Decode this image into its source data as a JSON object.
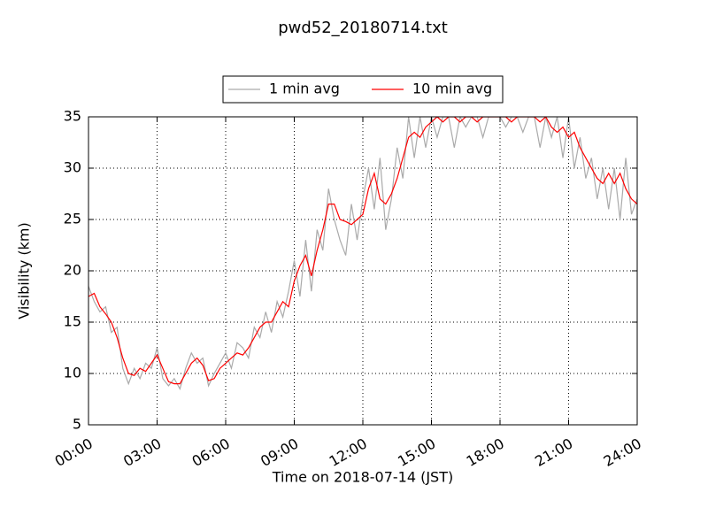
{
  "chart_data": {
    "type": "line",
    "title": "pwd52_20180714.txt",
    "x_label": "Time on 2018-07-14 (JST)",
    "y_label": "Visibility (km)",
    "x": [
      0,
      0.25,
      0.5,
      0.75,
      1,
      1.25,
      1.5,
      1.75,
      2,
      2.25,
      2.5,
      2.75,
      3,
      3.25,
      3.5,
      3.75,
      4,
      4.25,
      4.5,
      4.75,
      5,
      5.25,
      5.5,
      5.75,
      6,
      6.25,
      6.5,
      6.75,
      7,
      7.25,
      7.5,
      7.75,
      8,
      8.25,
      8.5,
      8.75,
      9,
      9.25,
      9.5,
      9.75,
      10,
      10.25,
      10.5,
      10.75,
      11,
      11.25,
      11.5,
      11.75,
      12,
      12.25,
      12.5,
      12.75,
      13,
      13.25,
      13.5,
      13.75,
      14,
      14.25,
      14.5,
      14.75,
      15,
      15.25,
      15.5,
      15.75,
      16,
      16.25,
      16.5,
      16.75,
      17,
      17.25,
      17.5,
      17.75,
      18,
      18.25,
      18.5,
      18.75,
      19,
      19.25,
      19.5,
      19.75,
      20,
      20.25,
      20.5,
      20.75,
      21,
      21.25,
      21.5,
      21.75,
      22,
      22.25,
      22.5,
      22.75,
      23,
      23.25,
      23.5,
      23.75,
      24
    ],
    "series": [
      {
        "name": "1 min avg",
        "color": "#aaaaaa",
        "values": [
          18.5,
          17,
          16,
          16.5,
          14,
          14.5,
          10.5,
          9,
          10.5,
          9.5,
          11,
          10.5,
          12.5,
          9.5,
          8.8,
          9.5,
          8.5,
          10.5,
          12,
          11,
          11.5,
          8.8,
          10,
          11,
          12,
          10.5,
          13,
          12.5,
          11.5,
          14.5,
          13.5,
          16,
          14,
          17,
          15.5,
          18,
          21,
          17.5,
          23,
          18,
          24,
          22,
          28,
          25,
          23,
          21.5,
          26.5,
          23,
          27,
          30,
          26,
          31,
          24,
          27,
          32,
          29,
          35,
          31,
          35,
          32,
          35,
          33,
          35,
          35,
          32,
          35,
          34,
          35,
          35,
          33,
          35,
          35,
          35,
          34,
          35,
          35,
          33.5,
          35,
          35,
          32,
          35,
          33,
          35,
          31,
          35,
          30,
          33,
          29,
          31,
          27,
          30,
          26,
          30,
          25,
          31,
          25.5,
          27
        ]
      },
      {
        "name": "10 min avg",
        "color": "#ff0000",
        "values": [
          17.5,
          17.8,
          16.5,
          15.8,
          15,
          13.5,
          11.5,
          10,
          9.8,
          10.5,
          10.2,
          11,
          11.8,
          10.5,
          9.2,
          9,
          9,
          10,
          11,
          11.5,
          10.8,
          9.3,
          9.5,
          10.5,
          11,
          11.5,
          12,
          11.8,
          12.5,
          13.5,
          14.5,
          15,
          15,
          16,
          17,
          16.5,
          19,
          20.5,
          21.5,
          19.5,
          22,
          24,
          26.5,
          26.5,
          25,
          24.8,
          24.5,
          25,
          25.5,
          28,
          29.5,
          27,
          26.5,
          27.5,
          29,
          31,
          33,
          33.5,
          33,
          34,
          34.5,
          35,
          34.5,
          35,
          35,
          34.5,
          35,
          35,
          34.5,
          35,
          35,
          35,
          35,
          35,
          34.5,
          35,
          35,
          35,
          35,
          34.5,
          35,
          34,
          33.5,
          34,
          33,
          33.5,
          32,
          31,
          30,
          29,
          28.5,
          29.5,
          28.5,
          29.5,
          28,
          27,
          26.5
        ]
      }
    ],
    "xlim": [
      0,
      24
    ],
    "xticks": [
      {
        "value": 0,
        "label": "00:00"
      },
      {
        "value": 3,
        "label": "03:00"
      },
      {
        "value": 6,
        "label": "06:00"
      },
      {
        "value": 9,
        "label": "09:00"
      },
      {
        "value": 12,
        "label": "12:00"
      },
      {
        "value": 15,
        "label": "15:00"
      },
      {
        "value": 18,
        "label": "18:00"
      },
      {
        "value": 21,
        "label": "21:00"
      },
      {
        "value": 24,
        "label": "24:00"
      }
    ],
    "ylim": [
      5,
      35
    ],
    "yticks": [
      5,
      10,
      15,
      20,
      25,
      30,
      35
    ],
    "grid": true,
    "legend": "upper center"
  }
}
